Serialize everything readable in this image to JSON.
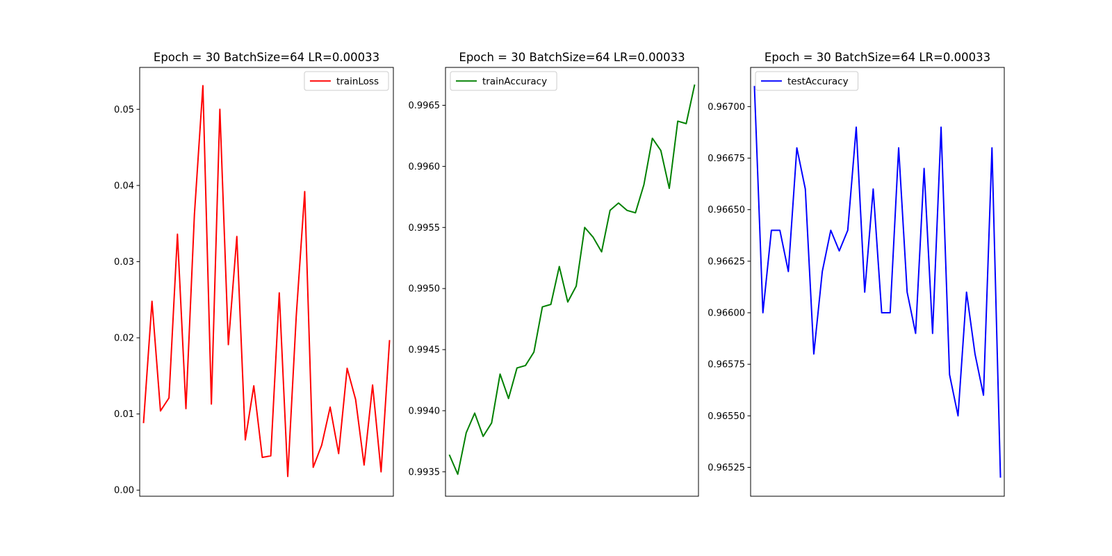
{
  "chart_data": [
    {
      "type": "line",
      "title": "Epoch = 30 BatchSize=64 LR=0.00033",
      "xlabel": "",
      "ylabel": "",
      "x": [
        1,
        2,
        3,
        4,
        5,
        6,
        7,
        8,
        9,
        10,
        11,
        12,
        13,
        14,
        15,
        16,
        17,
        18,
        19,
        20,
        21,
        22,
        23,
        24,
        25,
        26,
        27,
        28,
        29,
        30
      ],
      "ylim": [
        -0.0008,
        0.0555
      ],
      "yticks": [
        0.0,
        0.01,
        0.02,
        0.03,
        0.04,
        0.05
      ],
      "ytick_labels": [
        "0.00",
        "0.01",
        "0.02",
        "0.03",
        "0.04",
        "0.05"
      ],
      "grid": false,
      "legend_position": "top-right",
      "series": [
        {
          "name": "trainLoss",
          "color": "#ff0000",
          "values": [
            0.0088,
            0.0248,
            0.0104,
            0.0121,
            0.0336,
            0.0107,
            0.0362,
            0.0531,
            0.0113,
            0.05,
            0.0191,
            0.0333,
            0.0066,
            0.0137,
            0.0043,
            0.0045,
            0.0259,
            0.0018,
            0.0228,
            0.0392,
            0.003,
            0.0059,
            0.0109,
            0.0048,
            0.016,
            0.0119,
            0.0033,
            0.0138,
            0.0024,
            0.0197
          ]
        }
      ]
    },
    {
      "type": "line",
      "title": "Epoch = 30 BatchSize=64 LR=0.00033",
      "xlabel": "",
      "ylabel": "",
      "x": [
        1,
        2,
        3,
        4,
        5,
        6,
        7,
        8,
        9,
        10,
        11,
        12,
        13,
        14,
        15,
        16,
        17,
        18,
        19,
        20,
        21,
        22,
        23,
        24,
        25,
        26,
        27,
        28,
        29,
        30
      ],
      "ylim": [
        0.9933,
        0.99681
      ],
      "yticks": [
        0.9935,
        0.994,
        0.9945,
        0.995,
        0.9955,
        0.996,
        0.9965
      ],
      "ytick_labels": [
        "0.9935",
        "0.9940",
        "0.9945",
        "0.9950",
        "0.9955",
        "0.9960",
        "0.9965"
      ],
      "grid": false,
      "legend_position": "top-left",
      "series": [
        {
          "name": "trainAccuracy",
          "color": "#008000",
          "values": [
            0.99364,
            0.99348,
            0.99382,
            0.99398,
            0.99379,
            0.9939,
            0.9943,
            0.9941,
            0.99435,
            0.99437,
            0.99448,
            0.99485,
            0.99487,
            0.99518,
            0.99489,
            0.99502,
            0.9955,
            0.99542,
            0.9953,
            0.99564,
            0.9957,
            0.99564,
            0.99562,
            0.99585,
            0.99623,
            0.99613,
            0.99582,
            0.99637,
            0.99635,
            0.99667
          ]
        }
      ]
    },
    {
      "type": "line",
      "title": "Epoch = 30 BatchSize=64 LR=0.00033",
      "xlabel": "",
      "ylabel": "",
      "x": [
        1,
        2,
        3,
        4,
        5,
        6,
        7,
        8,
        9,
        10,
        11,
        12,
        13,
        14,
        15,
        16,
        17,
        18,
        19,
        20,
        21,
        22,
        23,
        24,
        25,
        26,
        27,
        28,
        29,
        30
      ],
      "ylim": [
        0.96511,
        0.96719
      ],
      "yticks": [
        0.96525,
        0.9655,
        0.96575,
        0.966,
        0.96625,
        0.9665,
        0.96675,
        0.967
      ],
      "ytick_labels": [
        "0.96525",
        "0.96550",
        "0.96575",
        "0.96600",
        "0.96625",
        "0.96650",
        "0.96675",
        "0.96700"
      ],
      "grid": false,
      "legend_position": "top-left",
      "series": [
        {
          "name": "testAccuracy",
          "color": "#0000ff",
          "values": [
            0.9671,
            0.966,
            0.9664,
            0.9664,
            0.9662,
            0.9668,
            0.9666,
            0.9658,
            0.9662,
            0.9664,
            0.9663,
            0.9664,
            0.9669,
            0.9661,
            0.9666,
            0.966,
            0.966,
            0.9668,
            0.9661,
            0.9659,
            0.9667,
            0.9659,
            0.9669,
            0.9657,
            0.9655,
            0.9661,
            0.9658,
            0.9656,
            0.9668,
            0.9652
          ]
        }
      ]
    }
  ]
}
